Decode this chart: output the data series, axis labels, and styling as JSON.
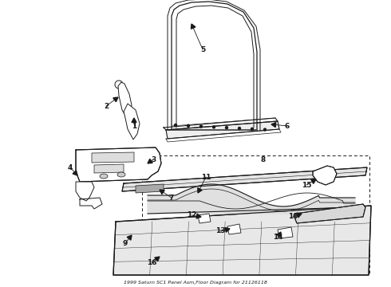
{
  "bg_color": "#ffffff",
  "line_color": "#1a1a1a",
  "figsize": [
    4.9,
    3.6
  ],
  "dpi": 100,
  "title": "1999 Saturn SC1 Panel Asm,Floor Diagram for 21126118"
}
